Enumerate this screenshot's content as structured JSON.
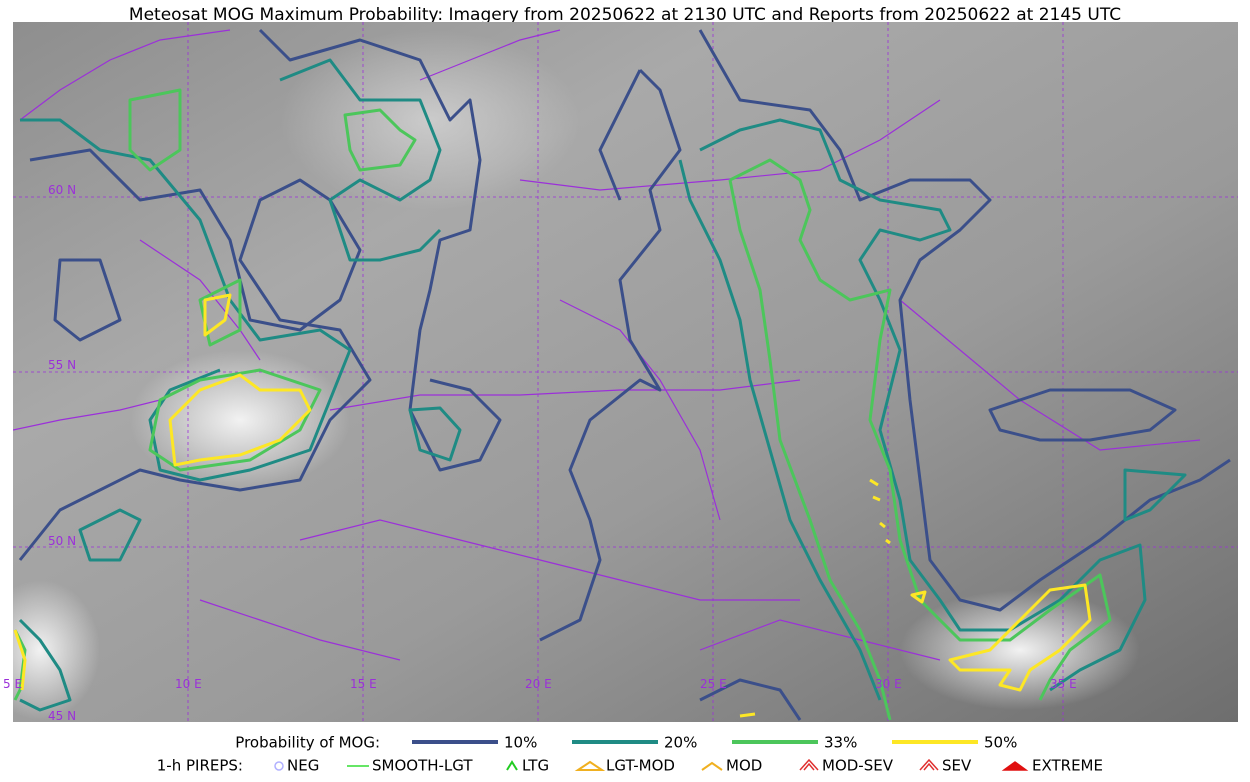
{
  "title": "Meteosat MOG Maximum Probability: Imagery from 20250622 at 2130 UTC and Reports from 20250622 at 2145 UTC",
  "map": {
    "lat_labels": [
      "60 N",
      "55 N",
      "50 N",
      "45 N"
    ],
    "lon_labels": [
      "5 E",
      "10 E",
      "15 E",
      "20 E",
      "25 E",
      "30 E",
      "35 E"
    ]
  },
  "legend": {
    "mog_title": "Probability of MOG:",
    "mog_items": [
      {
        "label": "10%",
        "color": "#3b4f8a"
      },
      {
        "label": "20%",
        "color": "#1f8b84"
      },
      {
        "label": "33%",
        "color": "#4cc65b"
      },
      {
        "label": "50%",
        "color": "#fde725"
      }
    ],
    "pirep_title": "1-h PIREPS:",
    "pirep_items": [
      {
        "label": "NEG",
        "color": "#b0b0ff"
      },
      {
        "label": "SMOOTH-LGT",
        "color": "#33dd33"
      },
      {
        "label": "LTG",
        "color": "#22cc22"
      },
      {
        "label": "LGT-MOD",
        "color": "#f0b020"
      },
      {
        "label": "MOD",
        "color": "#f0b020"
      },
      {
        "label": "MOD-SEV",
        "color": "#e03030"
      },
      {
        "label": "SEV",
        "color": "#e03030"
      },
      {
        "label": "EXTREME",
        "color": "#e01010"
      }
    ]
  }
}
